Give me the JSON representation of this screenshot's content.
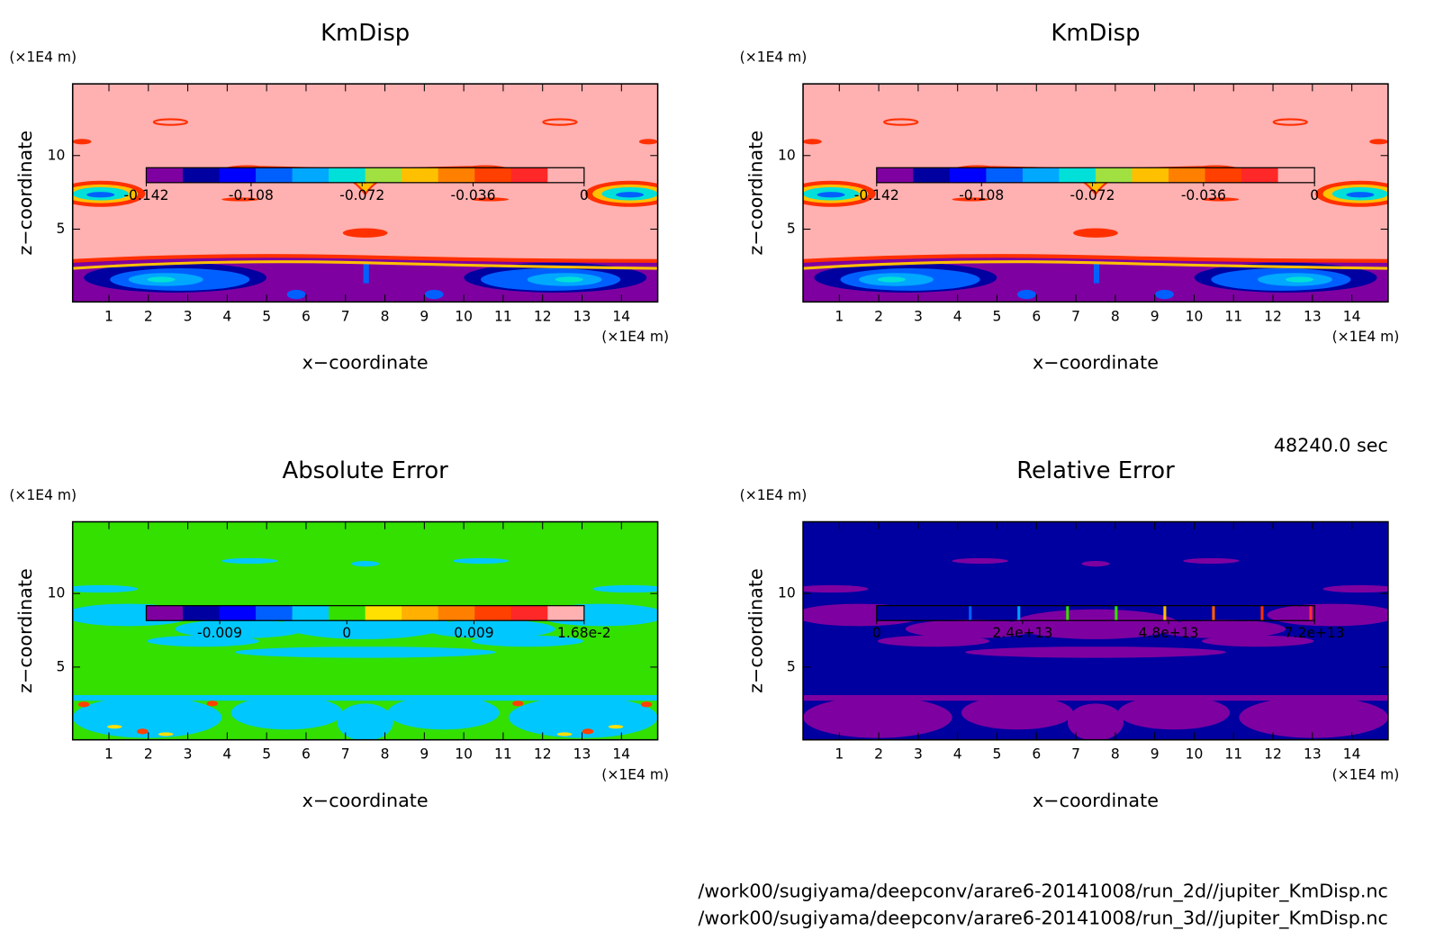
{
  "chart_data": [
    {
      "type": "contour",
      "title": "KmDisp",
      "xlabel": "x−coordinate",
      "ylabel": "z−coordinate",
      "x_unit": "(×1E4 m)",
      "y_unit": "(×1E4 m)",
      "xlim": [
        0.08,
        14.92
      ],
      "xticks": [
        1,
        2,
        3,
        4,
        5,
        6,
        7,
        8,
        9,
        10,
        11,
        12,
        13,
        14
      ],
      "ylim": [
        0.06,
        14.87
      ],
      "yticks": [
        5,
        10
      ],
      "colorbar": {
        "style": "filled",
        "lim": [
          -0.142,
          0
        ],
        "ticks": [
          -0.142,
          -0.108,
          -0.072,
          -0.036,
          0
        ],
        "colors": [
          "#7f00a0",
          "#0000a0",
          "#0000ff",
          "#0060ff",
          "#00a8ff",
          "#00e0d8",
          "#a0e040",
          "#ffc000",
          "#ff8000",
          "#ff4000",
          "#ff2828",
          "#ffb0b0"
        ]
      }
    },
    {
      "type": "contour",
      "title": "KmDisp",
      "xlabel": "x−coordinate",
      "ylabel": "z−coordinate",
      "x_unit": "(×1E4 m)",
      "y_unit": "(×1E4 m)",
      "xlim": [
        0.08,
        14.92
      ],
      "xticks": [
        1,
        2,
        3,
        4,
        5,
        6,
        7,
        8,
        9,
        10,
        11,
        12,
        13,
        14
      ],
      "ylim": [
        0.06,
        14.87
      ],
      "yticks": [
        5,
        10
      ],
      "colorbar": {
        "style": "filled",
        "lim": [
          -0.142,
          0
        ],
        "ticks": [
          -0.142,
          -0.108,
          -0.072,
          -0.036,
          0
        ],
        "colors": [
          "#7f00a0",
          "#0000a0",
          "#0000ff",
          "#0060ff",
          "#00a8ff",
          "#00e0d8",
          "#a0e040",
          "#ffc000",
          "#ff8000",
          "#ff4000",
          "#ff2828",
          "#ffb0b0"
        ]
      }
    },
    {
      "type": "contour",
      "title": "Absolute Error",
      "xlabel": "x−coordinate",
      "ylabel": "z−coordinate",
      "x_unit": "(×1E4 m)",
      "y_unit": "(×1E4 m)",
      "xlim": [
        0.08,
        14.92
      ],
      "xticks": [
        1,
        2,
        3,
        4,
        5,
        6,
        7,
        8,
        9,
        10,
        11,
        12,
        13,
        14
      ],
      "ylim": [
        0.06,
        14.87
      ],
      "yticks": [
        5,
        10
      ],
      "colorbar": {
        "style": "filled",
        "lim": [
          -0.0142,
          0.0168
        ],
        "ticks": [
          -0.009,
          0,
          0.009,
          {
            "value": 0.0168,
            "label": "1.68e-2"
          }
        ],
        "colors": [
          "#7f00a0",
          "#0000a0",
          "#0000ff",
          "#0060ff",
          "#00c8ff",
          "#33e000",
          "#ffe000",
          "#ffb000",
          "#ff8000",
          "#ff4000",
          "#ff2828",
          "#ffb0b0"
        ]
      }
    },
    {
      "type": "contour",
      "title": "Relative Error",
      "xlabel": "x−coordinate",
      "ylabel": "z−coordinate",
      "x_unit": "(×1E4 m)",
      "y_unit": "(×1E4 m)",
      "xlim": [
        0.08,
        14.92
      ],
      "xticks": [
        1,
        2,
        3,
        4,
        5,
        6,
        7,
        8,
        9,
        10,
        11,
        12,
        13,
        14
      ],
      "ylim": [
        0.06,
        14.87
      ],
      "yticks": [
        5,
        10
      ],
      "colorbar": {
        "style": "lines",
        "lim": [
          0,
          72000000000000.0
        ],
        "ticks": [
          0,
          {
            "value": 24000000000000.0,
            "label": "2.4e+13"
          },
          {
            "value": 48000000000000.0,
            "label": "4.8e+13"
          },
          {
            "value": 72000000000000.0,
            "label": "7.2e+13"
          }
        ],
        "colors": [
          "#0000a0",
          "#0060ff",
          "#00a0ff",
          "#33e000",
          "#33e000",
          "#ffc000",
          "#ff6000",
          "#ff3000",
          "#ff3030"
        ]
      }
    }
  ],
  "annotations": {
    "time": "48240.0 sec",
    "files": [
      "/work00/sugiyama/deepconv/arare6-20141008/run_2d//jupiter_KmDisp.nc",
      "/work00/sugiyama/deepconv/arare6-20141008/run_3d//jupiter_KmDisp.nc"
    ]
  }
}
